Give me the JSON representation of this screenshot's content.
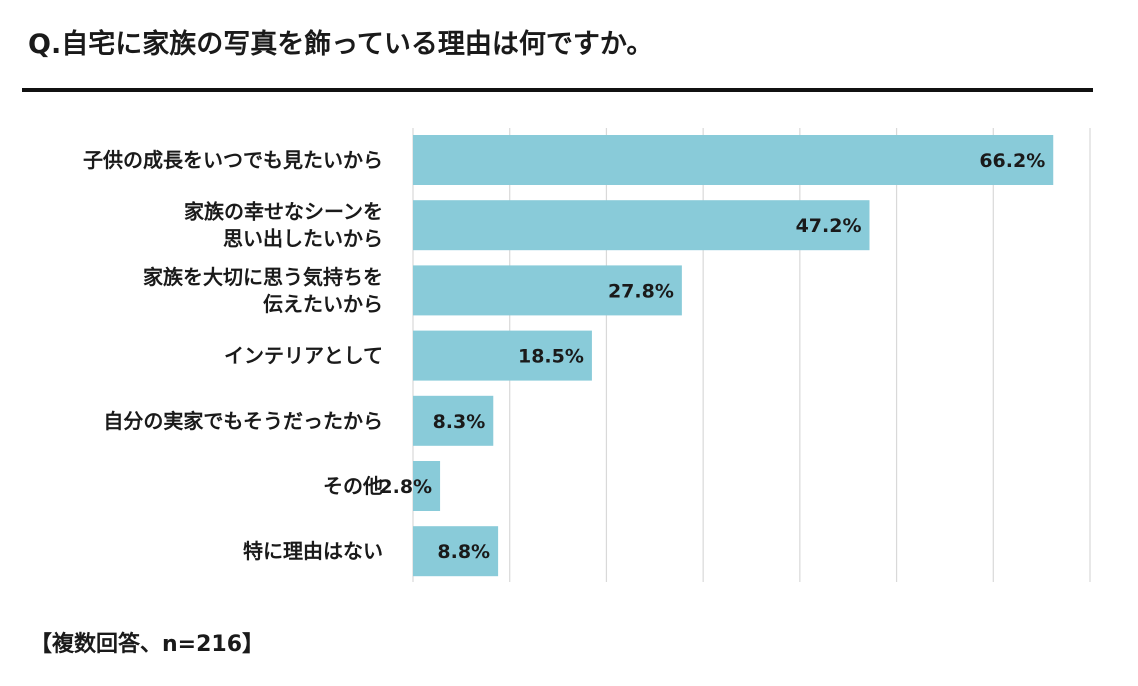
{
  "title": "Q.自宅に家族の写真を飾っている理由は何ですか。",
  "note": "【複数回答、n=216】",
  "colors": {
    "bar": "#89cbd9",
    "grid": "#d9d9d9",
    "text": "#1a1a1a",
    "rule": "#111111"
  },
  "chart_data": {
    "type": "bar",
    "orientation": "horizontal",
    "title": "Q.自宅に家族の写真を飾っている理由は何ですか。",
    "xlim": [
      0,
      70
    ],
    "grid": true,
    "categories": [
      [
        "子供の成長をいつでも見たいから"
      ],
      [
        "家族の幸せなシーンを",
        "思い出したいから"
      ],
      [
        "家族を大切に思う気持ちを",
        "伝えたいから"
      ],
      [
        "インテリアとして"
      ],
      [
        "自分の実家でもそうだったから"
      ],
      [
        "その他"
      ],
      [
        "特に理由はない"
      ]
    ],
    "values": [
      66.2,
      47.2,
      27.8,
      18.5,
      8.3,
      2.8,
      8.8
    ],
    "value_labels": [
      "66.2%",
      "47.2%",
      "27.8%",
      "18.5%",
      "8.3%",
      "2.8%",
      "8.8%"
    ],
    "unit": "%"
  }
}
